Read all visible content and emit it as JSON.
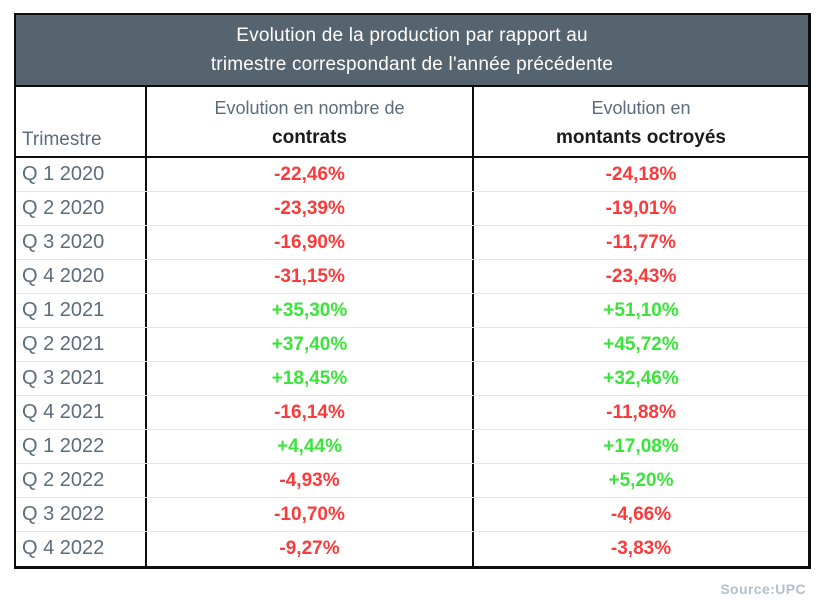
{
  "title": {
    "line1": "Evolution de la production par rapport au",
    "line2": "trimestre correspondant de l'année précédente"
  },
  "header": {
    "col1": "Trimestre",
    "col2_line1": "Evolution en nombre de",
    "col2_line2": "contrats",
    "col3_line1": "Evolution en",
    "col3_line2": "montants octroyés"
  },
  "chart_data": {
    "type": "table",
    "title": "Evolution de la production par rapport au trimestre correspondant de l'année précédente",
    "columns": [
      "Trimestre",
      "Evolution en nombre de contrats",
      "Evolution en montants octroyés"
    ],
    "categories": [
      "Q 1 2020",
      "Q 2 2020",
      "Q 3 2020",
      "Q 4 2020",
      "Q 1 2021",
      "Q 2 2021",
      "Q 3 2021",
      "Q 4 2021",
      "Q 1 2022",
      "Q 2 2022",
      "Q 3 2022",
      "Q 4 2022"
    ],
    "series": [
      {
        "name": "Evolution en nombre de contrats",
        "values": [
          -22.46,
          -23.39,
          -16.9,
          -31.15,
          35.3,
          37.4,
          18.45,
          -16.14,
          4.44,
          -4.93,
          -10.7,
          -9.27
        ]
      },
      {
        "name": "Evolution en montants octroyés",
        "values": [
          -24.18,
          -19.01,
          -11.77,
          -23.43,
          51.1,
          45.72,
          32.46,
          -11.88,
          17.08,
          5.2,
          -4.66,
          -3.83
        ]
      }
    ],
    "rows": [
      {
        "trimestre": "Q 1 2020",
        "contrats": "-22,46%",
        "montants": "-24,18%"
      },
      {
        "trimestre": "Q 2 2020",
        "contrats": "-23,39%",
        "montants": "-19,01%"
      },
      {
        "trimestre": "Q 3 2020",
        "contrats": "-16,90%",
        "montants": "-11,77%"
      },
      {
        "trimestre": "Q 4 2020",
        "contrats": "-31,15%",
        "montants": "-23,43%"
      },
      {
        "trimestre": "Q 1 2021",
        "contrats": "+35,30%",
        "montants": "+51,10%"
      },
      {
        "trimestre": "Q 2 2021",
        "contrats": "+37,40%",
        "montants": "+45,72%"
      },
      {
        "trimestre": "Q 3 2021",
        "contrats": "+18,45%",
        "montants": "+32,46%"
      },
      {
        "trimestre": "Q 4 2021",
        "contrats": "-16,14%",
        "montants": "-11,88%"
      },
      {
        "trimestre": "Q 1 2022",
        "contrats": "+4,44%",
        "montants": "+17,08%"
      },
      {
        "trimestre": "Q 2 2022",
        "contrats": "-4,93%",
        "montants": "+5,20%"
      },
      {
        "trimestre": "Q 3 2022",
        "contrats": "-10,70%",
        "montants": "-4,66%"
      },
      {
        "trimestre": "Q 4 2022",
        "contrats": "-9,27%",
        "montants": "-3,83%"
      }
    ]
  },
  "colors": {
    "title_bg": "#56646f",
    "title_text": "#ffffff",
    "label_text": "#5c6c7c",
    "header_bold_text": "#1a1a1a",
    "positive": "#3be43b",
    "negative": "#fb3b3b",
    "border": "#0d0d0d",
    "row_separator": "#e6e6e6",
    "source_text": "#b4bfca"
  },
  "source_label": "Source:UPC"
}
